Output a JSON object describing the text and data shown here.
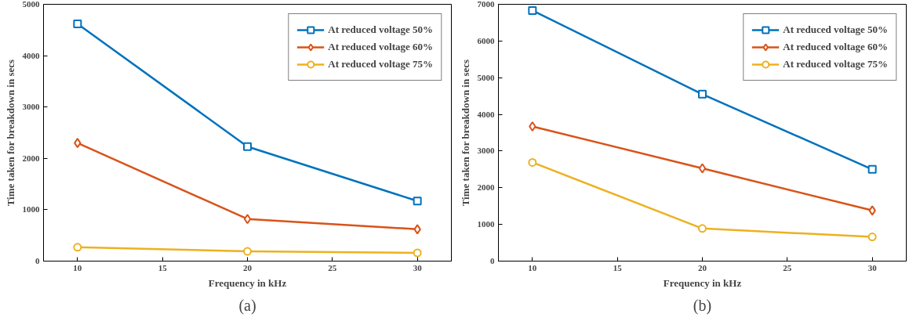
{
  "chart_data": [
    {
      "type": "line",
      "xlabel": "Frequency in kHz",
      "ylabel": "Time taken for breakdown in secs",
      "x": [
        10,
        20,
        30
      ],
      "xlim": [
        8,
        32
      ],
      "xticks": [
        10,
        15,
        20,
        25,
        30
      ],
      "ylim": [
        0,
        5000
      ],
      "yticks": [
        0,
        1000,
        2000,
        3000,
        4000,
        5000
      ],
      "grid": false,
      "legend": "top right",
      "annotations": [
        "(a)"
      ],
      "series": [
        {
          "name": "At reduced voltage 50%",
          "color": "#0072bd",
          "marker": "square",
          "values": [
            4620,
            2230,
            1170
          ]
        },
        {
          "name": "At reduced voltage 60%",
          "color": "#d95319",
          "marker": "diamond",
          "values": [
            2300,
            820,
            620
          ]
        },
        {
          "name": "At reduced voltage 75%",
          "color": "#edb120",
          "marker": "circle",
          "values": [
            270,
            190,
            160
          ]
        }
      ]
    },
    {
      "type": "line",
      "xlabel": "Frequency in kHz",
      "ylabel": "Time taken for breakdown in secs",
      "x": [
        10,
        20,
        30
      ],
      "xlim": [
        8,
        32
      ],
      "xticks": [
        10,
        15,
        20,
        25,
        30
      ],
      "ylim": [
        0,
        7000
      ],
      "yticks": [
        0,
        1000,
        2000,
        3000,
        4000,
        5000,
        6000,
        7000
      ],
      "grid": false,
      "legend": "top right",
      "annotations": [
        "(b)"
      ],
      "series": [
        {
          "name": "At reduced voltage 50%",
          "color": "#0072bd",
          "marker": "square",
          "values": [
            6830,
            4550,
            2500
          ]
        },
        {
          "name": "At reduced voltage 60%",
          "color": "#d95319",
          "marker": "diamond",
          "values": [
            3670,
            2530,
            1380
          ]
        },
        {
          "name": "At reduced voltage 75%",
          "color": "#edb120",
          "marker": "circle",
          "values": [
            2690,
            890,
            660
          ]
        }
      ]
    }
  ]
}
